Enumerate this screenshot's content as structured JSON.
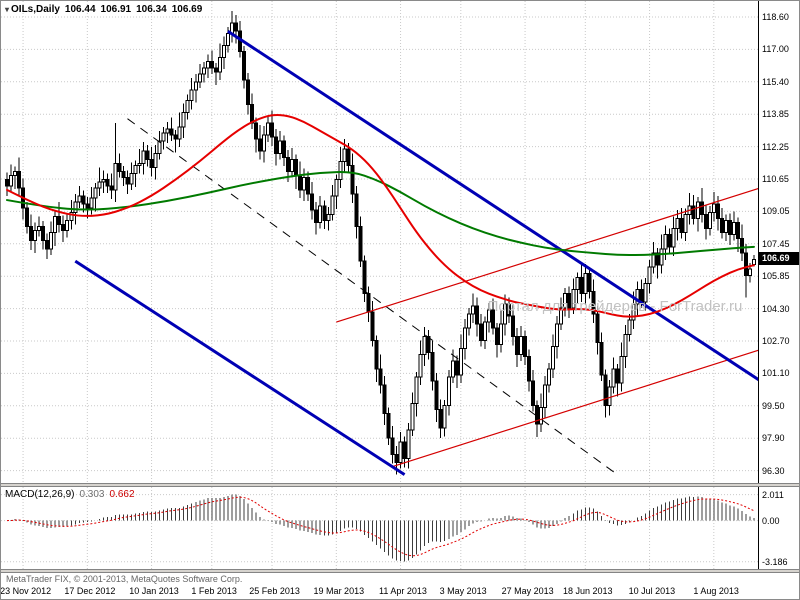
{
  "title": {
    "marker_icon": "▾",
    "symbol_period": "OILs,Daily",
    "open": "106.44",
    "high": "106.91",
    "low": "106.34",
    "close": "106.69"
  },
  "watermark": "Портал для трейдеров - ForTrader.ru",
  "copyright": "MetaTrader FIX, © 2001-2013, MetaQuotes Software Corp.",
  "price_axis": {
    "labels": [
      "118.60",
      "117.00",
      "115.40",
      "113.85",
      "112.25",
      "110.65",
      "109.05",
      "107.45",
      "105.85",
      "104.30",
      "102.70",
      "101.10",
      "99.50",
      "97.90",
      "96.30"
    ],
    "top_value": 118.6,
    "bottom_value": 96.3,
    "current_price": "106.69"
  },
  "time_axis": {
    "labels": [
      {
        "text": "23 Nov 2012",
        "i": 4
      },
      {
        "text": "17 Dec 2012",
        "i": 20
      },
      {
        "text": "10 Jan 2013",
        "i": 36
      },
      {
        "text": "1 Feb 2013",
        "i": 51
      },
      {
        "text": "25 Feb 2013",
        "i": 66
      },
      {
        "text": "19 Mar 2013",
        "i": 82
      },
      {
        "text": "11 Apr 2013",
        "i": 98
      },
      {
        "text": "3 May 2013",
        "i": 113
      },
      {
        "text": "27 May 2013",
        "i": 129
      },
      {
        "text": "18 Jun 2013",
        "i": 144
      },
      {
        "text": "10 Jul 2013",
        "i": 160
      },
      {
        "text": "1 Aug 2013",
        "i": 176
      }
    ]
  },
  "chart_data": {
    "type": "candlestick",
    "symbol": "OILs",
    "timeframe": "Daily",
    "bar_count": 187,
    "ylim": [
      96.3,
      118.6
    ],
    "closes": [
      110.3,
      110.8,
      111.0,
      110.2,
      109.2,
      108.3,
      107.6,
      108.1,
      108.3,
      107.6,
      107.2,
      108.0,
      108.8,
      108.4,
      108.1,
      108.6,
      109.0,
      109.5,
      109.8,
      109.4,
      109.2,
      109.7,
      110.2,
      110.5,
      110.6,
      110.3,
      110.1,
      111.4,
      111.0,
      110.7,
      110.4,
      110.9,
      111.3,
      111.4,
      112.0,
      111.6,
      111.2,
      111.9,
      112.5,
      112.9,
      113.1,
      112.8,
      112.6,
      113.2,
      113.9,
      114.5,
      115.0,
      115.4,
      115.8,
      116.1,
      116.4,
      116.1,
      115.9,
      116.6,
      117.2,
      117.8,
      118.3,
      117.9,
      116.9,
      115.5,
      114.3,
      113.4,
      112.6,
      112.0,
      112.8,
      113.4,
      112.7,
      111.9,
      112.5,
      111.7,
      111.0,
      111.6,
      110.8,
      110.1,
      110.7,
      109.9,
      109.1,
      108.5,
      109.3,
      108.6,
      108.9,
      109.8,
      110.6,
      111.5,
      112.1,
      111.3,
      109.9,
      108.3,
      106.6,
      105.0,
      104.1,
      102.7,
      101.3,
      100.5,
      99.1,
      97.9,
      97.1,
      96.7,
      97.7,
      96.9,
      98.3,
      99.6,
      100.9,
      102.0,
      102.9,
      102.1,
      100.7,
      99.3,
      98.4,
      99.5,
      100.9,
      101.7,
      101.0,
      102.3,
      103.3,
      104.0,
      104.4,
      103.5,
      102.7,
      103.6,
      104.2,
      103.3,
      102.5,
      103.5,
      104.5,
      103.9,
      102.9,
      102.0,
      102.9,
      101.9,
      100.7,
      99.5,
      98.6,
      99.4,
      100.5,
      101.3,
      102.4,
      103.5,
      104.3,
      105.0,
      104.3,
      105.2,
      105.8,
      105.0,
      106.0,
      105.1,
      104.0,
      102.6,
      101.0,
      99.5,
      100.4,
      101.3,
      100.6,
      101.9,
      103.0,
      103.7,
      104.5,
      105.2,
      104.6,
      105.5,
      106.3,
      107.0,
      106.4,
      107.2,
      107.9,
      107.3,
      108.2,
      108.7,
      108.0,
      108.9,
      109.3,
      108.7,
      109.5,
      108.9,
      108.2,
      109.0,
      109.4,
      108.7,
      108.0,
      108.6,
      107.9,
      108.5,
      107.7,
      107.0,
      105.9,
      106.2,
      106.69
    ],
    "last_bar": {
      "open": 106.44,
      "high": 106.91,
      "low": 106.34,
      "close": 106.69
    },
    "wick_pattern_up": [
      0.35,
      0.55,
      0.25,
      0.7,
      0.45,
      0.3,
      0.6,
      0.4,
      0.5,
      0.28
    ],
    "wick_pattern_down": [
      0.5,
      0.3,
      0.65,
      0.4,
      0.55,
      0.35,
      0.45,
      0.6,
      0.3,
      0.42
    ],
    "candle_overrides": {
      "high": {
        "27": 113.4,
        "56": 118.55,
        "84": 112.6,
        "170": 109.95
      },
      "low": {
        "97": 96.35,
        "99": 96.45,
        "108": 97.9,
        "132": 98.2,
        "149": 98.9,
        "184": 104.8
      }
    },
    "overlays": {
      "ma_slow_green": {
        "name": "slow-moving-average",
        "points": [
          [
            0,
            109.6
          ],
          [
            10,
            109.25
          ],
          [
            20,
            109.1
          ],
          [
            30,
            109.25
          ],
          [
            40,
            109.55
          ],
          [
            50,
            109.95
          ],
          [
            60,
            110.4
          ],
          [
            70,
            110.75
          ],
          [
            78,
            110.95
          ],
          [
            86,
            111.0
          ],
          [
            92,
            110.6
          ],
          [
            98,
            110.0
          ],
          [
            104,
            109.3
          ],
          [
            110,
            108.7
          ],
          [
            116,
            108.2
          ],
          [
            122,
            107.8
          ],
          [
            128,
            107.5
          ],
          [
            134,
            107.25
          ],
          [
            140,
            107.1
          ],
          [
            146,
            107.0
          ],
          [
            152,
            106.9
          ],
          [
            158,
            106.9
          ],
          [
            164,
            106.95
          ],
          [
            170,
            107.05
          ],
          [
            176,
            107.15
          ],
          [
            182,
            107.25
          ],
          [
            186,
            107.3
          ]
        ]
      },
      "ma_fast_red": {
        "name": "fast-moving-average",
        "points": [
          [
            0,
            110.1
          ],
          [
            6,
            109.5
          ],
          [
            12,
            109.05
          ],
          [
            18,
            108.8
          ],
          [
            24,
            108.85
          ],
          [
            30,
            109.2
          ],
          [
            36,
            109.8
          ],
          [
            42,
            110.6
          ],
          [
            48,
            111.5
          ],
          [
            54,
            112.5
          ],
          [
            58,
            113.1
          ],
          [
            62,
            113.55
          ],
          [
            66,
            113.8
          ],
          [
            70,
            113.75
          ],
          [
            74,
            113.45
          ],
          [
            78,
            113.0
          ],
          [
            82,
            112.55
          ],
          [
            86,
            112.1
          ],
          [
            90,
            111.4
          ],
          [
            94,
            110.4
          ],
          [
            98,
            109.2
          ],
          [
            102,
            108.0
          ],
          [
            106,
            107.0
          ],
          [
            110,
            106.2
          ],
          [
            114,
            105.6
          ],
          [
            118,
            105.15
          ],
          [
            122,
            104.85
          ],
          [
            126,
            104.6
          ],
          [
            130,
            104.45
          ],
          [
            134,
            104.3
          ],
          [
            138,
            104.2
          ],
          [
            142,
            104.25
          ],
          [
            146,
            104.2
          ],
          [
            150,
            104.0
          ],
          [
            154,
            103.85
          ],
          [
            158,
            103.9
          ],
          [
            162,
            104.1
          ],
          [
            166,
            104.45
          ],
          [
            170,
            104.9
          ],
          [
            174,
            105.4
          ],
          [
            178,
            105.85
          ],
          [
            182,
            106.2
          ],
          [
            186,
            106.4
          ]
        ]
      },
      "blue_trendlines": [
        {
          "from": [
            55,
            117.9
          ],
          "to": [
            190,
            100.4
          ]
        },
        {
          "from": [
            17,
            106.6
          ],
          "to": [
            99,
            96.1
          ]
        }
      ],
      "red_channel": [
        {
          "from": [
            82,
            103.6
          ],
          "to": [
            190,
            110.35
          ]
        },
        {
          "from": [
            96,
            96.5
          ],
          "to": [
            190,
            102.4
          ]
        }
      ],
      "dashed_trendline": {
        "from": [
          30,
          113.6
        ],
        "to": [
          152,
          96.1
        ]
      }
    },
    "indicator": {
      "label": "MACD(12,26,9)",
      "params": [
        12,
        26,
        9
      ],
      "value_main": "0.303",
      "value_signal": "0.662",
      "axis_ticks": [
        {
          "text": "2.011",
          "value": 2.011
        },
        {
          "text": "0.00",
          "value": 0
        },
        {
          "text": "-3.186",
          "value": -3.186
        }
      ],
      "axis_max": 2.011,
      "axis_min": -3.186
    },
    "colors": {
      "background": "#ffffff",
      "grid": "#c9c9c9",
      "bull": "#ffffff",
      "bear": "#000000",
      "outline": "#000000",
      "ma_fast": "#e60000",
      "ma_slow": "#007a00",
      "trend_blue": "#0000b4",
      "channel_red": "#d40000",
      "dashed": "#000000",
      "macd_main": "#3c3c3c",
      "macd_signal": "#e00000",
      "price_tag_bg": "#000000",
      "price_tag_text": "#ffffff",
      "watermark": "#c2c2c2"
    }
  }
}
